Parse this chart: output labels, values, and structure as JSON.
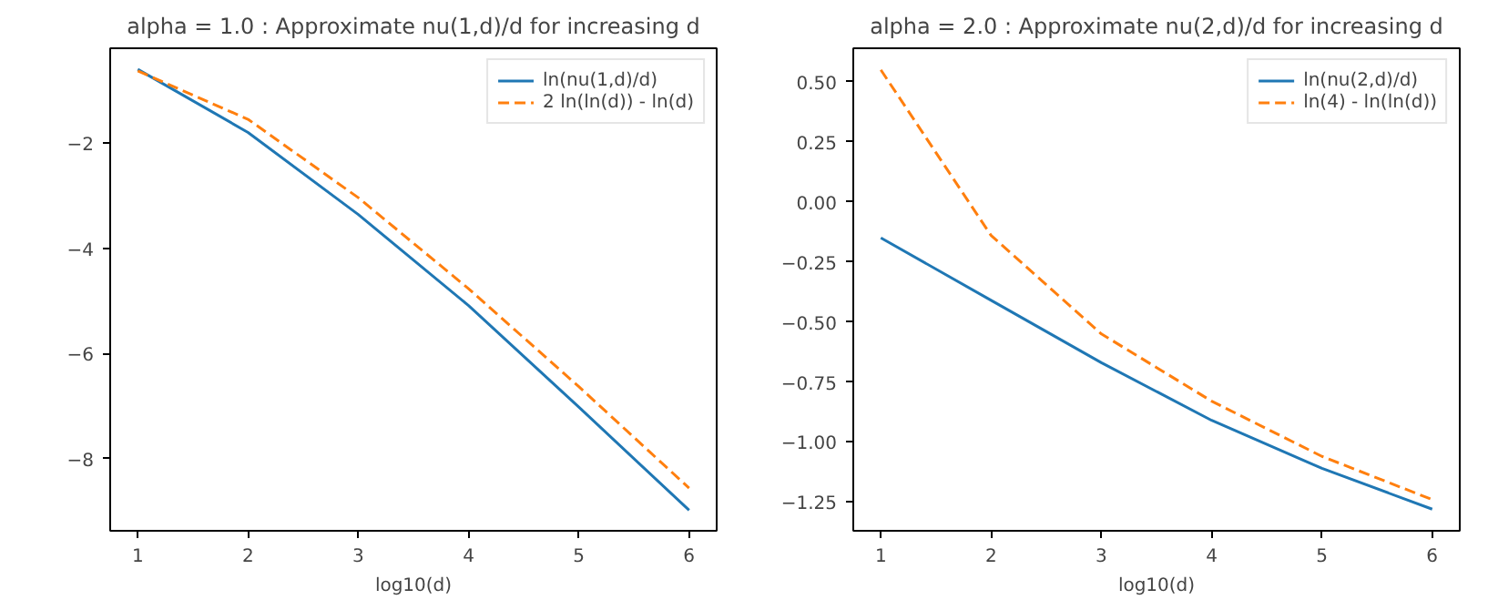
{
  "chart_data": [
    {
      "type": "line",
      "title": "alpha = 1.0 : Approximate nu(1,d)/d for increasing d",
      "xlabel": "log10(d)",
      "x": [
        1,
        2,
        3,
        4,
        5,
        6
      ],
      "series": [
        {
          "name": "ln(nu(1,d)/d)",
          "color": "#1f77b4",
          "line_style": "solid",
          "values": [
            -0.6,
            -1.8,
            -3.36,
            -5.09,
            -7.02,
            -8.98
          ]
        },
        {
          "name": "2 ln(ln(d)) - ln(d)",
          "color": "#ff7f0e",
          "line_style": "dashed",
          "values": [
            -0.63,
            -1.55,
            -3.04,
            -4.77,
            -6.63,
            -8.56
          ]
        }
      ],
      "xlim": [
        0.75,
        6.25
      ],
      "ylim": [
        -9.37,
        -0.2
      ],
      "xticks": [
        1,
        2,
        3,
        4,
        5,
        6
      ],
      "yticks": [
        -2,
        -4,
        -6,
        -8
      ],
      "grid": false,
      "legend": "top right"
    },
    {
      "type": "line",
      "title": "alpha = 2.0 : Approximate nu(2,d)/d for increasing d",
      "xlabel": "log10(d)",
      "x": [
        1,
        2,
        3,
        4,
        5,
        6
      ],
      "series": [
        {
          "name": "ln(nu(2,d)/d)",
          "color": "#1f77b4",
          "line_style": "solid",
          "values": [
            -0.15,
            -0.41,
            -0.67,
            -0.91,
            -1.11,
            -1.28
          ]
        },
        {
          "name": "ln(4) - ln(ln(d))",
          "color": "#ff7f0e",
          "line_style": "dashed",
          "values": [
            0.55,
            -0.14,
            -0.55,
            -0.83,
            -1.06,
            -1.24
          ]
        }
      ],
      "xlim": [
        0.75,
        6.25
      ],
      "ylim": [
        -1.37,
        0.64
      ],
      "xticks": [
        1,
        2,
        3,
        4,
        5,
        6
      ],
      "yticks": [
        {
          "value": -1.25,
          "label": "−1.25"
        },
        {
          "value": -1.0,
          "label": "−1.00"
        },
        {
          "value": -0.75,
          "label": "−0.75"
        },
        {
          "value": -0.5,
          "label": "−0.50"
        },
        {
          "value": -0.25,
          "label": "−0.25"
        },
        {
          "value": 0.0,
          "label": "0.00"
        },
        {
          "value": 0.25,
          "label": "0.25"
        },
        {
          "value": 0.5,
          "label": "0.50"
        }
      ],
      "grid": false,
      "legend": "top right"
    }
  ]
}
